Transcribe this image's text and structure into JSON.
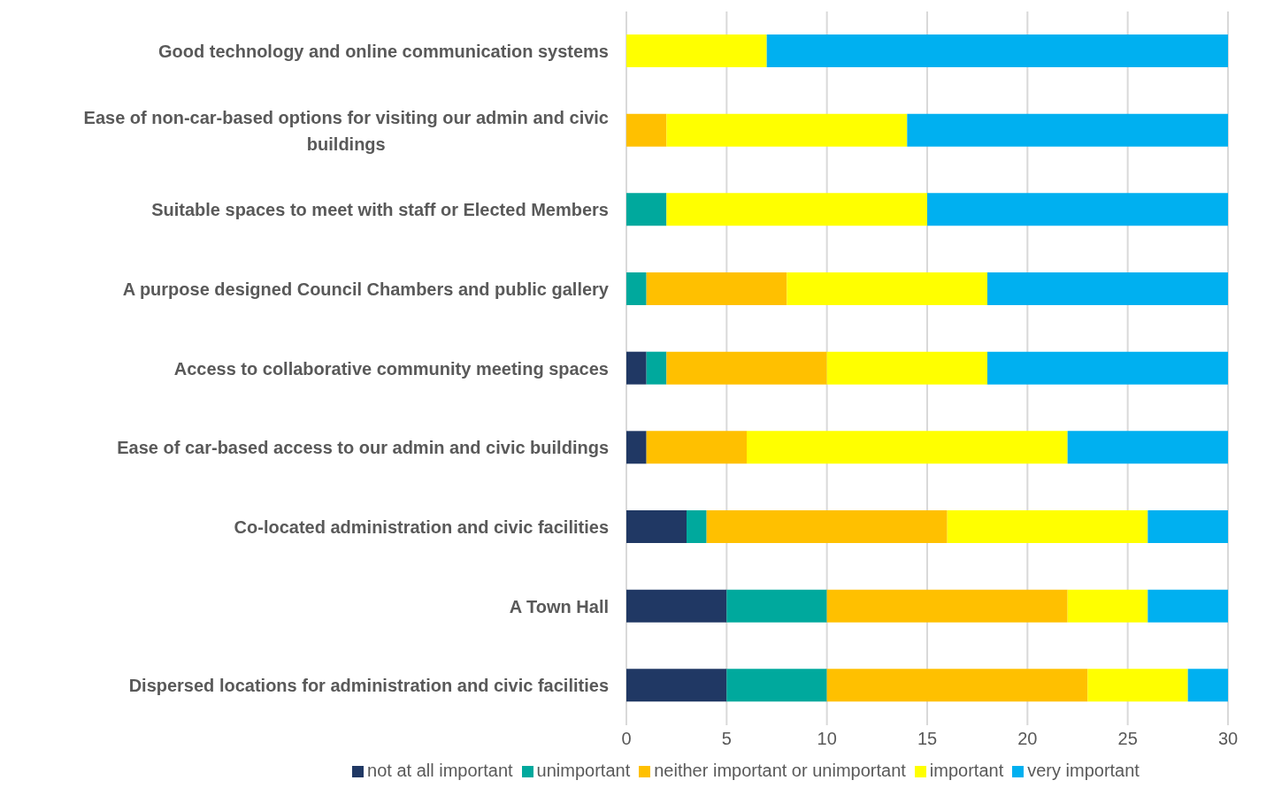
{
  "chart_data": {
    "type": "bar",
    "orientation": "horizontal",
    "stacked": true,
    "categories": [
      "Good technology and online communication systems",
      "Ease of non-car-based options for visiting our admin and civic buildings",
      "Suitable spaces to meet with staff or Elected Members",
      "A purpose designed Council Chambers and public gallery",
      "Access to collaborative community meeting spaces",
      "Ease of car-based access to our admin and civic buildings",
      "Co-located administration and civic facilities",
      "A Town Hall",
      "Dispersed locations for administration and civic facilities"
    ],
    "series": [
      {
        "name": "not at all important",
        "color": "#203864",
        "values": [
          0,
          0,
          0,
          0,
          1,
          1,
          3,
          5,
          5
        ]
      },
      {
        "name": "unimportant",
        "color": "#00a99d",
        "values": [
          0,
          0,
          2,
          1,
          1,
          0,
          1,
          5,
          5
        ]
      },
      {
        "name": "neither important or unimportant",
        "color": "#ffc000",
        "values": [
          0,
          2,
          0,
          7,
          8,
          5,
          12,
          12,
          13
        ]
      },
      {
        "name": "important",
        "color": "#ffff00",
        "values": [
          7,
          12,
          13,
          10,
          8,
          16,
          10,
          4,
          5
        ]
      },
      {
        "name": "very important",
        "color": "#00b0f0",
        "values": [
          23,
          16,
          15,
          12,
          12,
          8,
          4,
          4,
          2
        ]
      }
    ],
    "xlim": [
      0,
      30
    ],
    "xticks": [
      0,
      5,
      10,
      15,
      20,
      25,
      30
    ],
    "grid": "x",
    "legend": "bottom"
  }
}
